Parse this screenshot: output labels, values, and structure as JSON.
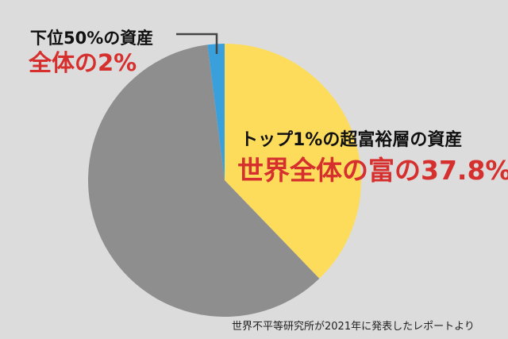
{
  "chart_data": {
    "type": "pie",
    "start": "top",
    "direction": "clockwise",
    "slices": [
      {
        "label": "トップ1%の超富裕層の資産",
        "value_label": "世界全体の富の37.8%",
        "value": 37.8,
        "color": "#fddc5c"
      },
      {
        "label": "",
        "value_label": "",
        "value": 60.2,
        "color": "#8f8e8e"
      },
      {
        "label": "下位50%の資産",
        "value_label": "全体の2%",
        "value": 2.0,
        "color": "#3aa0dc"
      }
    ],
    "label_color": "#111111",
    "value_color": "#d6302e"
  },
  "source": "世界不平等研究所が2021年に発表したレポートより"
}
